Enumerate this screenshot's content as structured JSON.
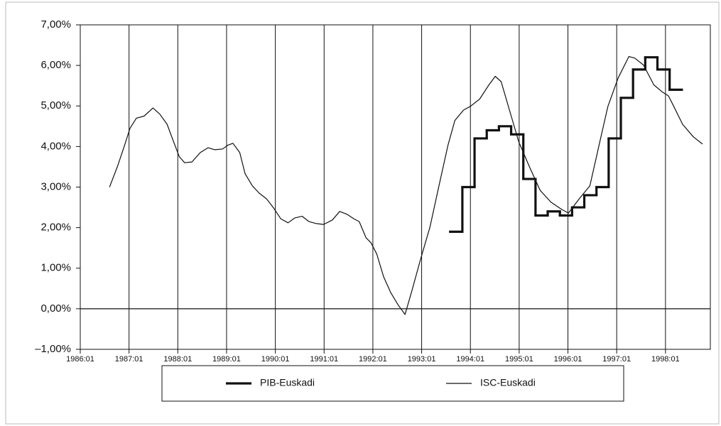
{
  "chart_data": {
    "type": "line",
    "xlim": [
      1986,
      1998.92
    ],
    "xticks": [
      {
        "value": 1986,
        "label": "1986:01"
      },
      {
        "value": 1987,
        "label": "1987:01"
      },
      {
        "value": 1988,
        "label": "1988:01"
      },
      {
        "value": 1989,
        "label": "1989:01"
      },
      {
        "value": 1990,
        "label": "1990:01"
      },
      {
        "value": 1991,
        "label": "1991:01"
      },
      {
        "value": 1992,
        "label": "1992:01"
      },
      {
        "value": 1993,
        "label": "1993:01"
      },
      {
        "value": 1994,
        "label": "1994:01"
      },
      {
        "value": 1995,
        "label": "1995:01"
      },
      {
        "value": 1996,
        "label": "1996:01"
      },
      {
        "value": 1997,
        "label": "1997:01"
      },
      {
        "value": 1998,
        "label": "1998:01"
      }
    ],
    "ylim": [
      -1,
      7
    ],
    "yticks": [
      {
        "value": -1,
        "label": "–1,00%"
      },
      {
        "value": 0,
        "label": "0,00%"
      },
      {
        "value": 1,
        "label": "1,00%"
      },
      {
        "value": 2,
        "label": "2,00%"
      },
      {
        "value": 3,
        "label": "3,00%"
      },
      {
        "value": 4,
        "label": "4,00%"
      },
      {
        "value": 5,
        "label": "5,00%"
      },
      {
        "value": 6,
        "label": "6,00%"
      },
      {
        "value": 7,
        "label": "7,00%"
      }
    ],
    "grid": "x",
    "zero_line": true,
    "legend": "bottom",
    "series": [
      {
        "name": "PIB-Euskadi",
        "color": "#111111",
        "style": "step",
        "linewidth": 3.2,
        "x": [
          1993.71,
          1993.96,
          1994.21,
          1994.46,
          1994.71,
          1994.96,
          1995.21,
          1995.46,
          1995.71,
          1995.96,
          1996.21,
          1996.46,
          1996.71,
          1996.96,
          1997.21,
          1997.46,
          1997.71,
          1997.96,
          1998.21
        ],
        "values": [
          1.9,
          3.0,
          4.2,
          4.4,
          4.5,
          4.3,
          3.2,
          2.3,
          2.4,
          2.3,
          2.5,
          2.8,
          3.0,
          4.2,
          5.2,
          5.9,
          6.2,
          5.9,
          5.4
        ]
      },
      {
        "name": "ISC-Euskadi",
        "color": "#111111",
        "style": "line",
        "linewidth": 1.2,
        "x": [
          1986.6,
          1986.76,
          1986.9,
          1987.02,
          1987.15,
          1987.31,
          1987.49,
          1987.63,
          1987.78,
          1987.92,
          1988.03,
          1988.14,
          1988.29,
          1988.46,
          1988.62,
          1988.76,
          1988.92,
          1989.02,
          1989.13,
          1989.27,
          1989.38,
          1989.53,
          1989.67,
          1989.82,
          1989.96,
          1990.11,
          1990.26,
          1990.4,
          1990.55,
          1990.69,
          1990.84,
          1990.99,
          1991.17,
          1991.32,
          1991.47,
          1991.61,
          1991.72,
          1991.86,
          1991.96,
          1992.08,
          1992.22,
          1992.37,
          1992.52,
          1992.66,
          1992.8,
          1992.98,
          1993.17,
          1993.36,
          1993.54,
          1993.68,
          1993.86,
          1994.0,
          1994.19,
          1994.38,
          1994.51,
          1994.63,
          1994.82,
          1994.99,
          1995.21,
          1995.43,
          1995.65,
          1995.87,
          1996.01,
          1996.23,
          1996.45,
          1996.67,
          1996.82,
          1997.03,
          1997.25,
          1997.37,
          1997.55,
          1997.76,
          1997.94,
          1998.06,
          1998.17,
          1998.35,
          1998.57,
          1998.76
        ],
        "values": [
          3.0,
          3.5,
          4.0,
          4.45,
          4.7,
          4.75,
          4.95,
          4.8,
          4.55,
          4.1,
          3.75,
          3.6,
          3.62,
          3.85,
          3.97,
          3.92,
          3.94,
          4.03,
          4.08,
          3.85,
          3.33,
          3.03,
          2.85,
          2.71,
          2.49,
          2.22,
          2.12,
          2.24,
          2.28,
          2.15,
          2.1,
          2.08,
          2.19,
          2.4,
          2.33,
          2.22,
          2.15,
          1.75,
          1.63,
          1.35,
          0.79,
          0.39,
          0.09,
          -0.14,
          0.44,
          1.23,
          2.01,
          3.06,
          4.03,
          4.64,
          4.9,
          4.99,
          5.17,
          5.52,
          5.73,
          5.6,
          4.82,
          4.12,
          3.5,
          2.92,
          2.63,
          2.45,
          2.36,
          2.71,
          3.03,
          4.2,
          4.99,
          5.69,
          6.22,
          6.18,
          6.01,
          5.52,
          5.34,
          5.25,
          4.99,
          4.55,
          4.24,
          4.06
        ]
      }
    ]
  }
}
